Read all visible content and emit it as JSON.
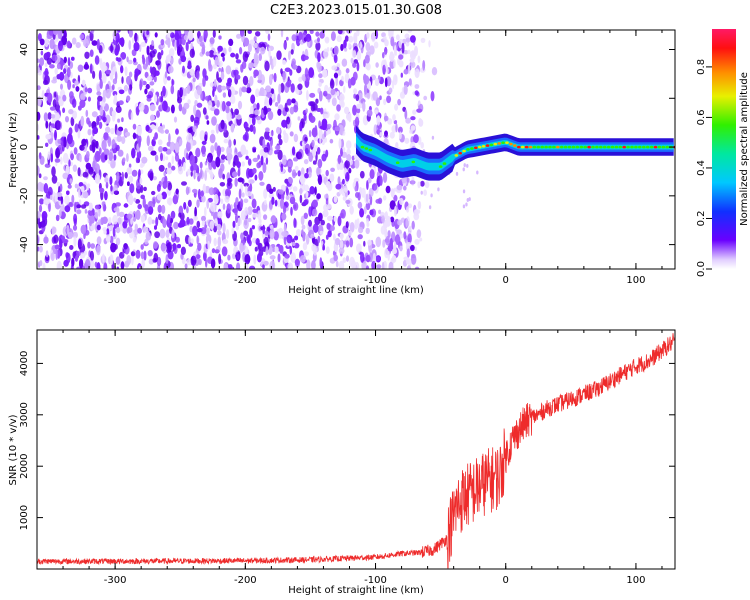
{
  "chart_data": [
    {
      "type": "heatmap",
      "title": "C2E3.2023.015.01.30.G08",
      "xlabel": "Height of straight line (km)",
      "ylabel": "Frequency (Hz)",
      "xlim": [
        -360,
        130
      ],
      "ylim": [
        -50,
        48
      ],
      "x_ticks": [
        -300,
        -200,
        -100,
        0,
        100
      ],
      "y_ticks": [
        -40,
        -20,
        0,
        20,
        40
      ],
      "noise_region_x": [
        -360,
        -65
      ],
      "signal_track": {
        "x": [
          -115,
          -110,
          -100,
          -90,
          -80,
          -70,
          -60,
          -50,
          -40,
          -30,
          -20,
          -10,
          0,
          10,
          20,
          40,
          60,
          80,
          100,
          120,
          130
        ],
        "y": [
          3,
          0,
          -2,
          -5,
          -7,
          -6,
          -8,
          -8,
          -4,
          -1,
          0,
          1,
          2,
          0,
          0,
          0,
          0,
          0,
          0,
          0,
          0
        ]
      },
      "colorbar": {
        "label": "Normalized spectral amplitude",
        "range": [
          0.0,
          0.95
        ],
        "ticks": [
          0.0,
          0.2,
          0.4,
          0.6,
          0.8
        ]
      }
    },
    {
      "type": "line",
      "xlabel": "Height of straight line (km)",
      "ylabel": "SNR (10 * v/v)",
      "xlim": [
        -360,
        130
      ],
      "ylim": [
        0,
        4650
      ],
      "x_ticks": [
        -300,
        -200,
        -100,
        0,
        100
      ],
      "y_ticks": [
        1000,
        2000,
        3000,
        4000
      ],
      "color": "#ee2b2b",
      "series": [
        {
          "name": "SNR",
          "x": [
            -360,
            -300,
            -200,
            -150,
            -100,
            -80,
            -65,
            -55,
            -45,
            -38,
            -32,
            -25,
            -15,
            -5,
            0,
            5,
            10,
            15,
            20,
            25,
            30,
            40,
            50,
            60,
            70,
            80,
            90,
            100,
            110,
            120,
            130
          ],
          "values": [
            150,
            150,
            160,
            180,
            230,
            300,
            320,
            380,
            600,
            1200,
            1400,
            1500,
            1700,
            1800,
            2200,
            2500,
            2700,
            2850,
            2950,
            3000,
            3100,
            3200,
            3300,
            3400,
            3500,
            3650,
            3800,
            3950,
            4050,
            4250,
            4450
          ]
        }
      ]
    }
  ]
}
